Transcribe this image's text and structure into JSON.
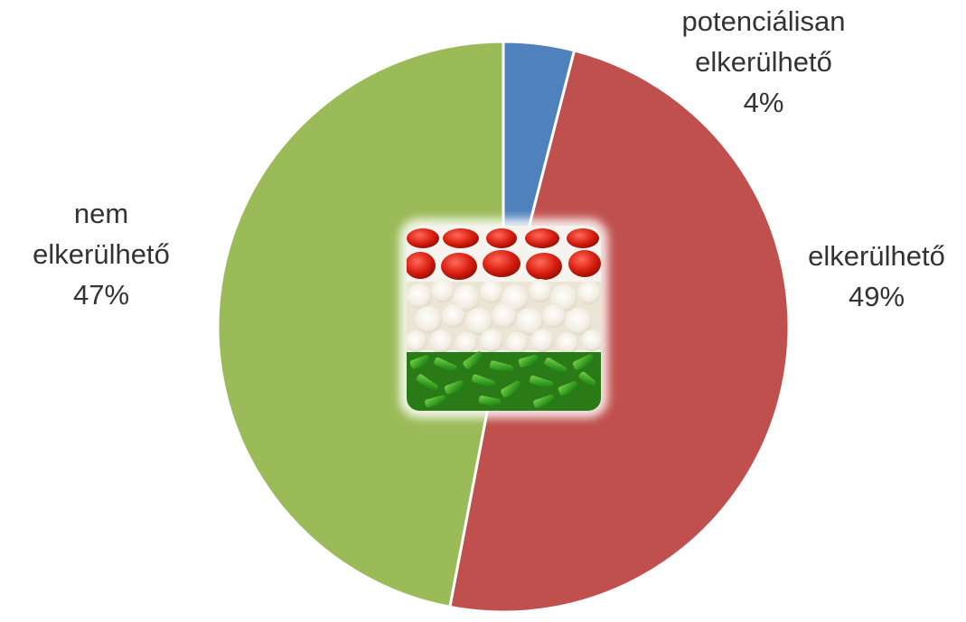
{
  "chart_data": {
    "type": "pie",
    "slices": [
      {
        "label_lines": [
          "potenciálisan",
          "elkerülhető",
          "4%"
        ],
        "value": 4,
        "color": "#4f81bd"
      },
      {
        "label_lines": [
          "elkerülhető",
          "49%"
        ],
        "value": 49,
        "color": "#c0504d"
      },
      {
        "label_lines": [
          "nem",
          "elkerülhető",
          "47%"
        ],
        "value": 47,
        "color": "#9bbb59"
      }
    ],
    "start_angle_deg": 0,
    "direction": "clockwise",
    "legend": "none",
    "center_image": "vegetables-hungarian-flag"
  }
}
